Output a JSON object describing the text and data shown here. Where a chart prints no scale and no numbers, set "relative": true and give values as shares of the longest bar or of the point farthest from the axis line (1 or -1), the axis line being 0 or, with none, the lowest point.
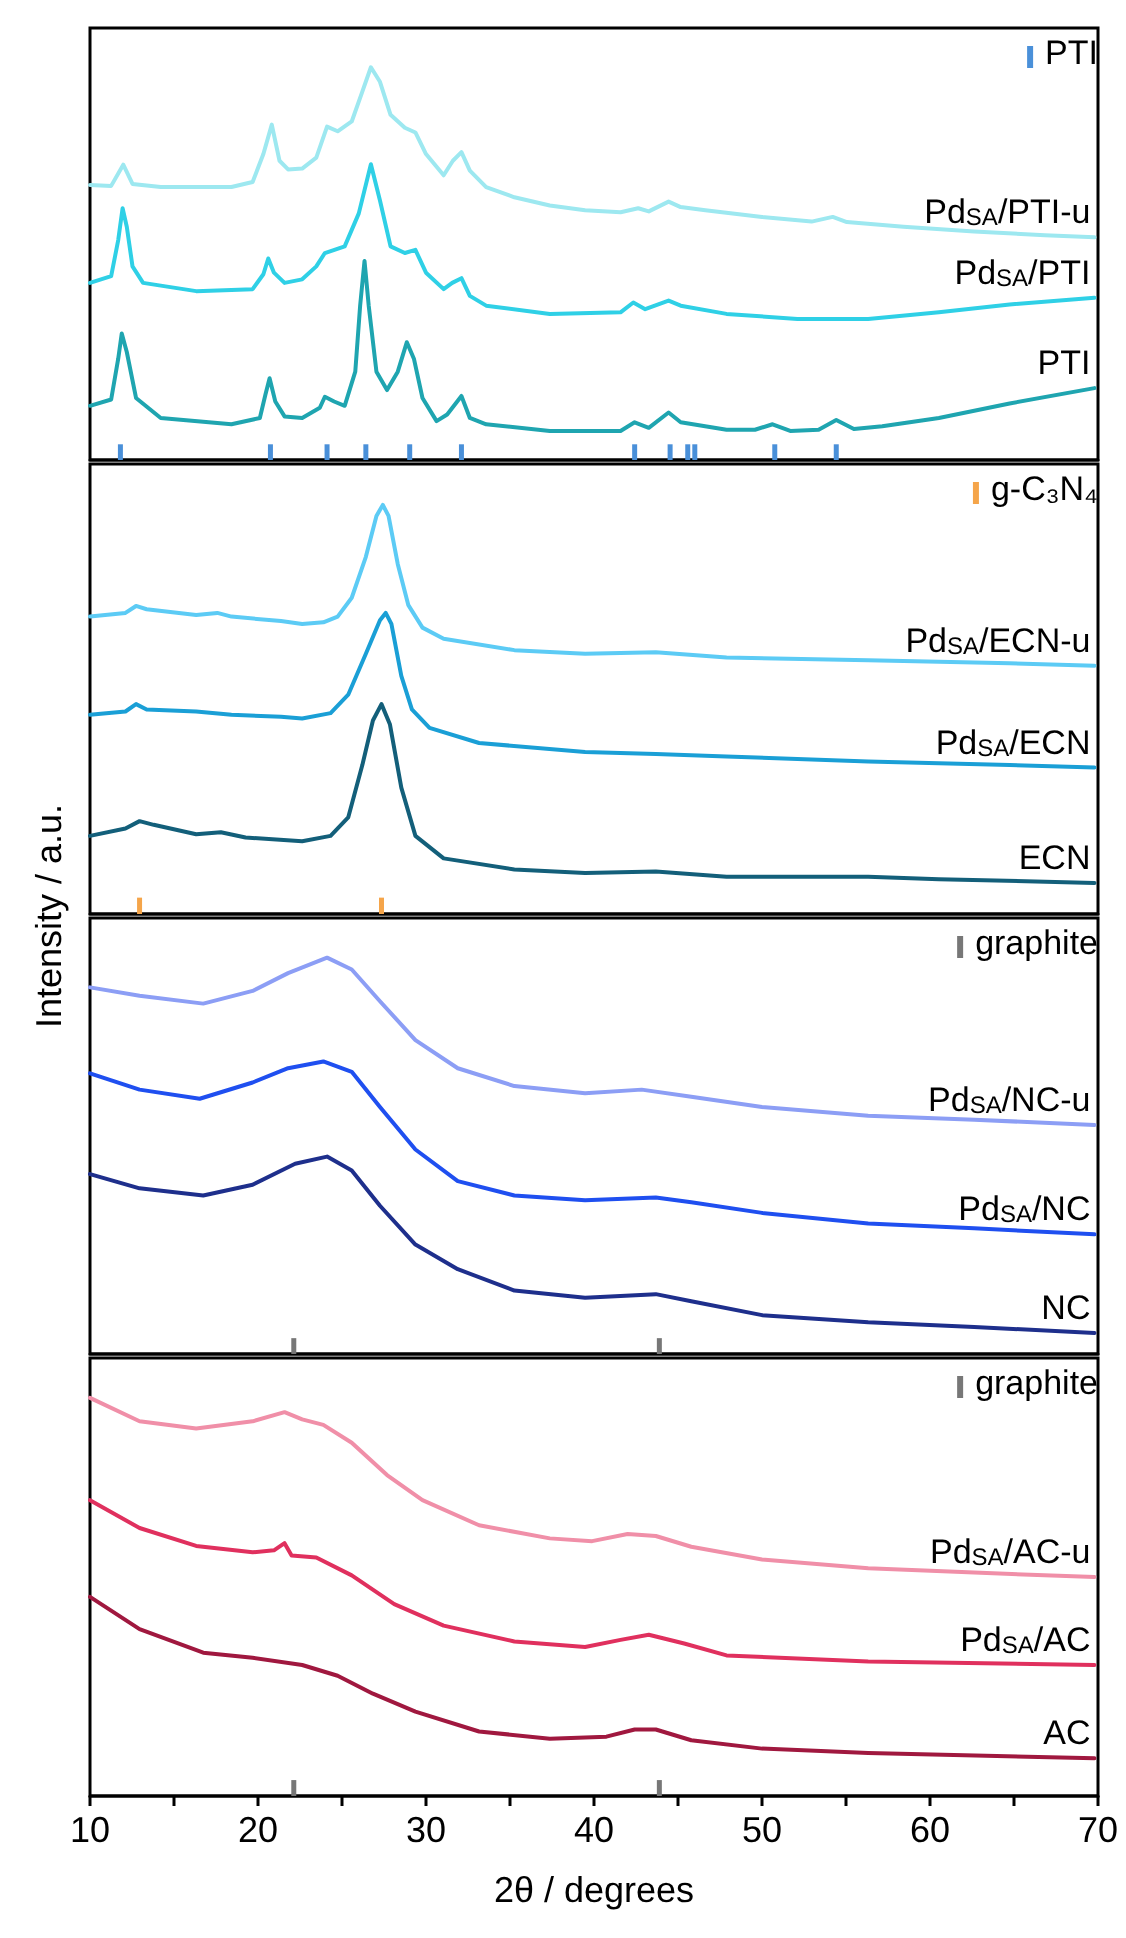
{
  "chart_data": [
    {
      "type": "line",
      "relative": true,
      "xlim": [
        10,
        70
      ],
      "tick_labels": false,
      "legend": "top right",
      "grid": false,
      "series": [
        {
          "name": "Pd$_{SA}$/PTI-u",
          "color": "#9de8f0",
          "x": [
            10.0,
            11.26,
            11.98,
            12.53,
            14.21,
            18.42,
            19.68,
            20.32,
            20.82,
            21.28,
            21.79,
            22.63,
            23.47,
            24.11,
            24.74,
            25.58,
            26.21,
            26.72,
            27.26,
            27.89,
            28.74,
            29.37,
            30.0,
            31.05,
            31.6,
            32.11,
            32.61,
            33.58,
            35.26,
            37.37,
            39.47,
            41.58,
            42.63,
            43.26,
            44.44,
            45.16,
            46.63,
            50.0,
            52.95,
            54.21,
            55.05,
            58.42,
            62.63,
            66.84,
            69.79
          ],
          "values": [
            0.7,
            0.698,
            0.752,
            0.703,
            0.695,
            0.695,
            0.708,
            0.779,
            0.854,
            0.762,
            0.74,
            0.742,
            0.77,
            0.849,
            0.837,
            0.862,
            0.938,
            1.0,
            0.963,
            0.879,
            0.846,
            0.834,
            0.779,
            0.725,
            0.762,
            0.784,
            0.737,
            0.695,
            0.669,
            0.648,
            0.636,
            0.631,
            0.641,
            0.633,
            0.658,
            0.644,
            0.636,
            0.619,
            0.607,
            0.619,
            0.606,
            0.594,
            0.582,
            0.572,
            0.567
          ]
        },
        {
          "name": "Pd$_{SA}$/PTI",
          "color": "#2fd0e6",
          "x": [
            10.0,
            11.26,
            11.68,
            11.94,
            12.19,
            12.53,
            13.16,
            16.32,
            19.68,
            20.32,
            20.61,
            20.95,
            21.58,
            22.63,
            23.47,
            23.98,
            25.16,
            26.0,
            26.72,
            27.26,
            27.89,
            28.74,
            29.37,
            30.0,
            31.05,
            31.56,
            32.11,
            32.61,
            33.58,
            37.37,
            41.58,
            42.34,
            43.05,
            44.44,
            45.16,
            47.89,
            52.11,
            56.32,
            60.53,
            64.74,
            69.79
          ],
          "values": [
            0.451,
            0.468,
            0.56,
            0.641,
            0.594,
            0.493,
            0.451,
            0.43,
            0.435,
            0.473,
            0.513,
            0.477,
            0.451,
            0.46,
            0.493,
            0.527,
            0.544,
            0.628,
            0.753,
            0.661,
            0.544,
            0.527,
            0.535,
            0.477,
            0.435,
            0.451,
            0.463,
            0.418,
            0.393,
            0.372,
            0.376,
            0.401,
            0.384,
            0.406,
            0.393,
            0.372,
            0.359,
            0.359,
            0.376,
            0.396,
            0.413
          ]
        },
        {
          "name": "PTI",
          "color": "#1fa5b0",
          "x": [
            10.0,
            11.26,
            11.68,
            11.89,
            12.19,
            12.74,
            14.21,
            18.42,
            20.11,
            20.44,
            20.69,
            21.03,
            21.58,
            22.63,
            23.68,
            23.98,
            24.53,
            25.16,
            25.79,
            26.08,
            26.34,
            26.59,
            27.05,
            27.68,
            28.32,
            28.86,
            29.28,
            29.79,
            30.63,
            31.26,
            32.11,
            32.61,
            33.58,
            37.37,
            41.58,
            42.42,
            43.26,
            44.44,
            45.16,
            47.89,
            49.58,
            50.63,
            51.68,
            53.37,
            54.42,
            55.47,
            57.16,
            60.53,
            64.74,
            69.79
          ],
          "values": [
            0.138,
            0.154,
            0.258,
            0.322,
            0.275,
            0.158,
            0.107,
            0.091,
            0.107,
            0.166,
            0.208,
            0.149,
            0.111,
            0.107,
            0.133,
            0.161,
            0.149,
            0.138,
            0.225,
            0.393,
            0.507,
            0.393,
            0.225,
            0.178,
            0.225,
            0.3,
            0.258,
            0.158,
            0.099,
            0.116,
            0.163,
            0.107,
            0.091,
            0.074,
            0.074,
            0.096,
            0.082,
            0.121,
            0.096,
            0.077,
            0.077,
            0.091,
            0.074,
            0.077,
            0.102,
            0.079,
            0.086,
            0.107,
            0.144,
            0.183
          ]
        },
        {
          "name": "PTI",
          "type": "bar",
          "color": "#4a90d9",
          "x": [
            11.81,
            20.74,
            24.11,
            26.42,
            29.03,
            32.11,
            42.42,
            44.53,
            45.58,
            46.0,
            50.76,
            54.42
          ],
          "values": [
            0.04,
            0.04,
            0.04,
            0.04,
            0.04,
            0.04,
            0.04,
            0.04,
            0.04,
            0.04,
            0.04,
            0.04
          ]
        }
      ]
    },
    {
      "type": "line",
      "relative": true,
      "xlim": [
        10,
        70
      ],
      "tick_labels": false,
      "legend": "top right",
      "grid": false,
      "ylabel": "Intensity / a.u.",
      "series": [
        {
          "name": "Pd$_{SA}$/ECN-u",
          "color": "#5ccbf5",
          "x": [
            10.0,
            12.11,
            12.74,
            13.37,
            16.32,
            17.58,
            18.42,
            21.37,
            22.63,
            23.89,
            24.74,
            25.58,
            26.42,
            27.05,
            27.43,
            27.77,
            28.32,
            28.95,
            29.79,
            31.05,
            35.26,
            39.47,
            43.68,
            47.89,
            56.32,
            64.74,
            69.79
          ],
          "values": [
            0.727,
            0.736,
            0.753,
            0.745,
            0.731,
            0.736,
            0.727,
            0.716,
            0.709,
            0.713,
            0.727,
            0.773,
            0.873,
            0.973,
            1.0,
            0.973,
            0.855,
            0.755,
            0.7,
            0.673,
            0.645,
            0.636,
            0.64,
            0.627,
            0.62,
            0.613,
            0.607
          ]
        },
        {
          "name": "Pd$_{SA}$/ECN",
          "color": "#1a9fd6",
          "x": [
            10.0,
            12.11,
            12.74,
            13.37,
            16.32,
            18.42,
            21.37,
            22.63,
            24.32,
            25.37,
            26.42,
            27.26,
            27.6,
            27.94,
            28.53,
            29.16,
            30.21,
            33.16,
            39.47,
            43.68,
            47.89,
            56.32,
            64.74,
            69.79
          ],
          "values": [
            0.487,
            0.495,
            0.513,
            0.5,
            0.495,
            0.487,
            0.482,
            0.478,
            0.491,
            0.536,
            0.636,
            0.718,
            0.736,
            0.709,
            0.582,
            0.5,
            0.455,
            0.418,
            0.396,
            0.391,
            0.385,
            0.373,
            0.364,
            0.358
          ]
        },
        {
          "name": "ECN",
          "color": "#135f7a",
          "x": [
            10.0,
            12.11,
            12.95,
            13.79,
            16.32,
            17.79,
            19.26,
            22.63,
            24.32,
            25.37,
            26.21,
            26.84,
            27.35,
            27.85,
            28.53,
            29.37,
            31.05,
            35.26,
            39.47,
            43.68,
            47.89,
            56.32,
            60.53,
            69.79
          ],
          "values": [
            0.191,
            0.209,
            0.227,
            0.218,
            0.195,
            0.2,
            0.187,
            0.178,
            0.191,
            0.236,
            0.364,
            0.473,
            0.513,
            0.464,
            0.309,
            0.191,
            0.136,
            0.109,
            0.1,
            0.104,
            0.091,
            0.091,
            0.085,
            0.076
          ]
        },
        {
          "name": "g-C₃N₄",
          "type": "bar",
          "color": "#f5a54a",
          "x": [
            12.95,
            27.35
          ],
          "values": [
            0.04,
            0.04
          ]
        }
      ]
    },
    {
      "type": "line",
      "relative": true,
      "xlim": [
        10,
        70
      ],
      "tick_labels": false,
      "legend": "top right",
      "grid": false,
      "series": [
        {
          "name": "Pd$_{SA}$/NC-u",
          "color": "#8c9ef5",
          "x": [
            10.0,
            12.95,
            16.74,
            19.68,
            21.79,
            24.11,
            25.58,
            27.26,
            29.37,
            31.89,
            35.26,
            39.47,
            42.84,
            45.79,
            50.0,
            56.32,
            62.63,
            69.79
          ],
          "values": [
            0.925,
            0.904,
            0.884,
            0.916,
            0.961,
            1.0,
            0.97,
            0.89,
            0.792,
            0.721,
            0.676,
            0.658,
            0.667,
            0.649,
            0.623,
            0.601,
            0.591,
            0.578
          ]
        },
        {
          "name": "Pd$_{SA}$/NC",
          "color": "#1f4ff0",
          "x": [
            10.0,
            12.95,
            16.53,
            19.68,
            21.79,
            23.89,
            25.58,
            27.26,
            29.37,
            31.89,
            35.26,
            39.47,
            43.68,
            45.79,
            50.0,
            56.32,
            62.63,
            69.79
          ],
          "values": [
            0.708,
            0.667,
            0.644,
            0.685,
            0.721,
            0.738,
            0.712,
            0.623,
            0.516,
            0.436,
            0.4,
            0.388,
            0.395,
            0.383,
            0.356,
            0.329,
            0.317,
            0.302
          ]
        },
        {
          "name": "NC",
          "color": "#1e2f8c",
          "x": [
            10.0,
            12.95,
            16.74,
            19.68,
            22.21,
            24.11,
            25.58,
            27.26,
            29.37,
            31.89,
            35.26,
            39.47,
            43.68,
            45.79,
            50.0,
            56.32,
            62.63,
            69.79
          ],
          "values": [
            0.454,
            0.418,
            0.4,
            0.427,
            0.48,
            0.498,
            0.463,
            0.374,
            0.276,
            0.214,
            0.16,
            0.142,
            0.151,
            0.133,
            0.098,
            0.08,
            0.068,
            0.053
          ]
        },
        {
          "name": "graphite",
          "type": "bar",
          "color": "#777777",
          "x": [
            22.13,
            43.89
          ],
          "values": [
            0.04,
            0.04
          ]
        }
      ]
    },
    {
      "type": "line",
      "relative": true,
      "xlim": [
        10,
        70
      ],
      "xticks": [
        10,
        {
          "value": 15,
          "label": null
        },
        20,
        {
          "value": 25,
          "label": null
        },
        30,
        {
          "value": 35,
          "label": null
        },
        40,
        {
          "value": 45,
          "label": null
        },
        50,
        {
          "value": 55,
          "label": null
        },
        60,
        {
          "value": 65,
          "label": null
        },
        70
      ],
      "tick_labels": "x",
      "legend": "top right",
      "grid": false,
      "xlabel": "2θ / degrees",
      "series": [
        {
          "name": "Pd$_{SA}$/AC-u",
          "color": "#f08fa8",
          "x": [
            10.0,
            12.95,
            16.32,
            19.68,
            21.58,
            22.63,
            23.89,
            25.58,
            27.68,
            29.79,
            33.16,
            37.37,
            39.89,
            42.0,
            43.68,
            45.79,
            50.0,
            56.32,
            62.63,
            69.79
          ],
          "values": [
            1.0,
            0.941,
            0.923,
            0.941,
            0.964,
            0.946,
            0.932,
            0.887,
            0.806,
            0.743,
            0.68,
            0.647,
            0.64,
            0.658,
            0.653,
            0.626,
            0.594,
            0.572,
            0.561,
            0.55
          ]
        },
        {
          "name": "Pd$_{SA}$/AC",
          "color": "#e0305e",
          "x": [
            10.0,
            12.95,
            16.32,
            19.68,
            20.95,
            21.58,
            22.0,
            23.47,
            25.58,
            28.11,
            31.05,
            35.26,
            39.47,
            41.58,
            43.26,
            45.37,
            47.89,
            56.32,
            69.79
          ],
          "values": [
            0.743,
            0.673,
            0.628,
            0.612,
            0.617,
            0.635,
            0.604,
            0.599,
            0.554,
            0.482,
            0.428,
            0.388,
            0.374,
            0.392,
            0.405,
            0.383,
            0.353,
            0.338,
            0.329
          ]
        },
        {
          "name": "AC",
          "color": "#a0183f",
          "x": [
            10.0,
            12.95,
            16.74,
            19.68,
            22.63,
            24.74,
            26.84,
            29.37,
            33.16,
            37.37,
            40.74,
            42.42,
            43.68,
            45.79,
            50.0,
            56.32,
            69.79
          ],
          "values": [
            0.5,
            0.419,
            0.36,
            0.347,
            0.329,
            0.302,
            0.257,
            0.212,
            0.162,
            0.144,
            0.149,
            0.167,
            0.167,
            0.14,
            0.119,
            0.108,
            0.095
          ]
        },
        {
          "name": "graphite",
          "type": "bar",
          "color": "#777777",
          "x": [
            22.13,
            43.89
          ],
          "values": [
            0.04,
            0.04
          ]
        }
      ]
    }
  ]
}
